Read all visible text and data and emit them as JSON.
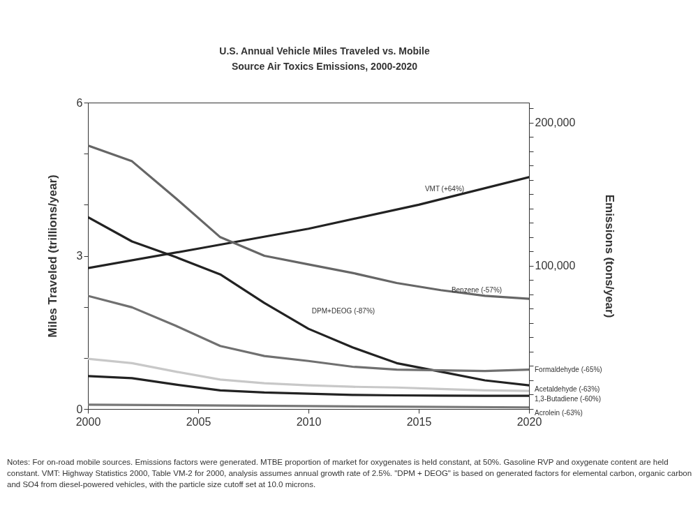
{
  "chart_data": {
    "type": "line",
    "title": "U.S. Annual Vehicle Miles Traveled vs. Mobile Source Air Toxics Emissions, 2000-2020",
    "ylabel": "Miles Traveled (trillions/year)",
    "y2label": "Emissions (tons/year)",
    "xlim": [
      2000,
      2020
    ],
    "xticks": [
      2000,
      2005,
      2010,
      2015,
      2020
    ],
    "ylim": [
      0,
      6
    ],
    "yticks": [
      0,
      {
        "value": 1,
        "label": null
      },
      {
        "value": 2,
        "label": null
      },
      3,
      {
        "value": 4,
        "label": null
      },
      {
        "value": 5,
        "label": null
      },
      6
    ],
    "y2lim": [
      0,
      214000
    ],
    "y2ticks": [
      {
        "value": 0,
        "label": null
      },
      {
        "value": 10000,
        "label": null
      },
      {
        "value": 20000,
        "label": null
      },
      {
        "value": 30000,
        "label": null
      },
      {
        "value": 40000,
        "label": null
      },
      {
        "value": 50000,
        "label": null
      },
      {
        "value": 60000,
        "label": null
      },
      {
        "value": 70000,
        "label": null
      },
      {
        "value": 80000,
        "label": null
      },
      {
        "value": 90000,
        "label": null
      },
      {
        "value": 100000,
        "label": "100,000"
      },
      {
        "value": 110000,
        "label": null
      },
      {
        "value": 120000,
        "label": null
      },
      {
        "value": 130000,
        "label": null
      },
      {
        "value": 140000,
        "label": null
      },
      {
        "value": 150000,
        "label": null
      },
      {
        "value": 160000,
        "label": null
      },
      {
        "value": 170000,
        "label": null
      },
      {
        "value": 180000,
        "label": null
      },
      {
        "value": 190000,
        "label": null
      },
      {
        "value": 200000,
        "label": "200,000"
      },
      {
        "value": 210000,
        "label": null
      }
    ],
    "x": [
      2000,
      2002,
      2004,
      2006,
      2008,
      2010,
      2012,
      2014,
      2016,
      2018,
      2020
    ],
    "series": [
      {
        "name": "VMT (+64%)",
        "color": "#222222",
        "x": [
          2000,
          2005,
          2010,
          2015,
          2020
        ],
        "values": [
          2.76,
          3.14,
          3.53,
          4.0,
          4.54
        ]
      },
      {
        "name": "Benzene (-57%)",
        "color": "#666666",
        "axis": "y2",
        "values": [
          184000,
          173000,
          147000,
          120000,
          107000,
          101000,
          95000,
          88000,
          83000,
          79000,
          77000
        ]
      },
      {
        "name": "DPM+DEOG (-87%)",
        "color": "#222222",
        "axis": "y2",
        "values": [
          134000,
          117000,
          106000,
          94000,
          74000,
          56000,
          43000,
          32000,
          26000,
          20000,
          16500
        ]
      },
      {
        "name": "Formaldehyde (-65%)",
        "color": "#707070",
        "axis": "y2",
        "values": [
          79000,
          71000,
          58000,
          44000,
          37000,
          33500,
          29500,
          27500,
          27000,
          26500,
          27500
        ]
      },
      {
        "name": "Acetaldehyde (-63%)",
        "color": "#c8c8c8",
        "axis": "y2",
        "values": [
          35000,
          32000,
          26000,
          20500,
          18000,
          16500,
          15500,
          15000,
          14000,
          13000,
          12600
        ]
      },
      {
        "name": "1,3-Butadiene (-60%)",
        "color": "#222222",
        "axis": "y2",
        "values": [
          23000,
          21500,
          17000,
          13000,
          11500,
          10700,
          9800,
          9500,
          9300,
          9200,
          9200
        ]
      },
      {
        "name": "Acrolein (-63%)",
        "color": "#777777",
        "axis": "y2",
        "x": [
          2000,
          2010,
          2020
        ],
        "values": [
          3000,
          2000,
          1100
        ]
      }
    ],
    "legend": false,
    "grid": false,
    "marker": "none",
    "line_style": "solid",
    "annotations": [
      "Notes: For on-road mobile sources. Emissions factors were generated. MTBE proportion of market for oxygenates is held constant, at 50%. Gasoline RVP and oxygenate content are held constant. VMT: Highway Statistics 2000, Table VM-2 for 2000, analysis assumes annual growth rate of 2.5%. \"DPM + DEOG\" is based on generated factors for elemental carbon, organic carbon and SO4 from diesel-powered vehicles, with the particle size cutoff set at 10.0 microns."
    ]
  }
}
